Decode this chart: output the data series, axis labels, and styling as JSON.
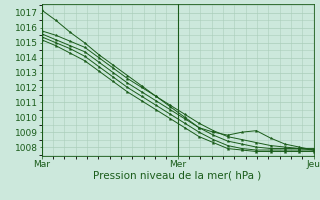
{
  "xlabel": "Pression niveau de la mer( hPa )",
  "bg_color": "#cce8dc",
  "plot_bg_color": "#cce8dc",
  "line_color": "#1a5c1a",
  "grid_color": "#aaceba",
  "yticks": [
    1008,
    1009,
    1010,
    1011,
    1012,
    1013,
    1014,
    1015,
    1016,
    1017
  ],
  "ylim": [
    1007.4,
    1017.6
  ],
  "xlim": [
    0,
    48
  ],
  "xtick_positions": [
    0,
    24,
    48
  ],
  "xtick_labels": [
    "Mar",
    "Mer",
    "Jeu"
  ],
  "series": [
    [
      1017.2,
      1016.5,
      1015.7,
      1015.0,
      1014.2,
      1013.5,
      1012.8,
      1012.1,
      1011.4,
      1010.7,
      1010.0,
      1009.3,
      1009.0,
      1008.8,
      1009.0,
      1009.1,
      1008.6,
      1008.2,
      1008.0,
      1007.8
    ],
    [
      1015.8,
      1015.5,
      1015.1,
      1014.7,
      1014.0,
      1013.3,
      1012.6,
      1012.0,
      1011.4,
      1010.8,
      1010.2,
      1009.6,
      1009.1,
      1008.7,
      1008.5,
      1008.3,
      1008.1,
      1008.0,
      1007.9,
      1007.9
    ],
    [
      1015.6,
      1015.2,
      1014.8,
      1014.4,
      1013.7,
      1013.0,
      1012.3,
      1011.7,
      1011.1,
      1010.5,
      1009.9,
      1009.3,
      1008.8,
      1008.4,
      1008.2,
      1008.0,
      1007.9,
      1007.9,
      1007.9,
      1007.8
    ],
    [
      1015.4,
      1015.0,
      1014.6,
      1014.1,
      1013.4,
      1012.7,
      1012.0,
      1011.4,
      1010.8,
      1010.2,
      1009.6,
      1009.0,
      1008.5,
      1008.1,
      1007.9,
      1007.8,
      1007.8,
      1007.8,
      1007.8,
      1007.8
    ],
    [
      1015.2,
      1014.8,
      1014.3,
      1013.8,
      1013.1,
      1012.4,
      1011.7,
      1011.1,
      1010.5,
      1009.9,
      1009.3,
      1008.7,
      1008.3,
      1007.9,
      1007.8,
      1007.7,
      1007.7,
      1007.7,
      1007.7,
      1007.7
    ]
  ],
  "tick_fontsize": 6.5,
  "label_fontsize": 7.5
}
